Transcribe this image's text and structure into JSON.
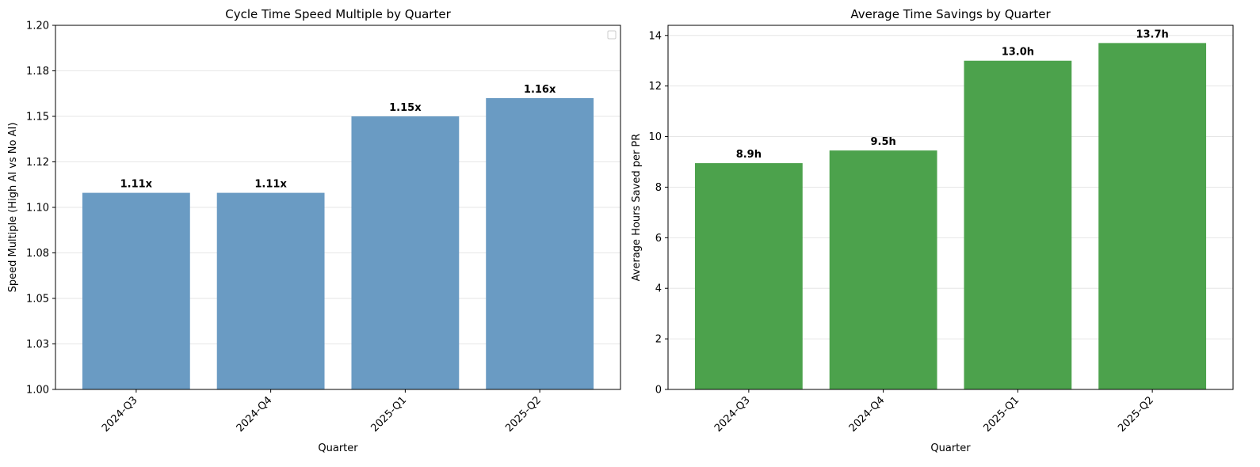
{
  "chart_data": [
    {
      "type": "bar",
      "title": "Cycle Time Speed Multiple by Quarter",
      "xlabel": "Quarter",
      "ylabel": "Speed Multiple (High AI vs No AI)",
      "categories": [
        "2024-Q3",
        "2024-Q4",
        "2025-Q1",
        "2025-Q2"
      ],
      "values": [
        1.108,
        1.108,
        1.15,
        1.16
      ],
      "data_labels": [
        "1.11x",
        "1.11x",
        "1.15x",
        "1.16x"
      ],
      "ylim": [
        1.0,
        1.2
      ],
      "yticks": [
        1.0,
        1.025,
        1.05,
        1.075,
        1.1,
        1.125,
        1.15,
        1.175,
        1.2
      ],
      "ytick_labels": [
        "1.00",
        "1.03",
        "1.05",
        "1.08",
        "1.10",
        "1.12",
        "1.15",
        "1.18",
        "1.20"
      ],
      "grid": "y",
      "legend": "upper-right (empty)",
      "color": "#6a9bc3"
    },
    {
      "type": "bar",
      "title": "Average Time Savings by Quarter",
      "xlabel": "Quarter",
      "ylabel": "Average Hours Saved per PR",
      "categories": [
        "2024-Q3",
        "2024-Q4",
        "2025-Q1",
        "2025-Q2"
      ],
      "values": [
        8.95,
        9.45,
        13.0,
        13.7
      ],
      "data_labels": [
        "8.9h",
        "9.5h",
        "13.0h",
        "13.7h"
      ],
      "ylim": [
        0,
        14.4
      ],
      "yticks": [
        0,
        2,
        4,
        6,
        8,
        10,
        12,
        14
      ],
      "ytick_labels": [
        "0",
        "2",
        "4",
        "6",
        "8",
        "10",
        "12",
        "14"
      ],
      "grid": "y",
      "color": "#4ca24c"
    }
  ]
}
